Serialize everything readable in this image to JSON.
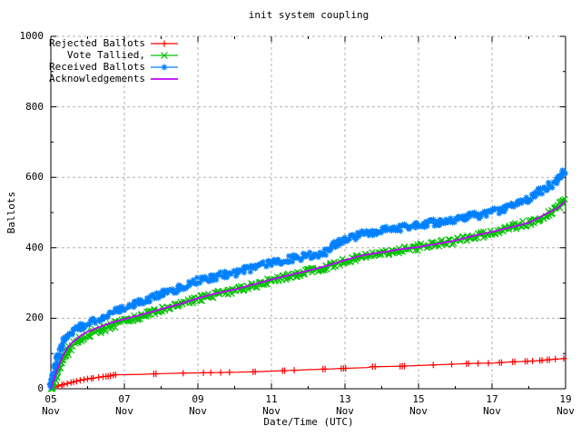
{
  "title": "init system coupling",
  "colors": {
    "background": "#ffffff",
    "border": "#000000",
    "grid": "#b0b0b0",
    "text": "#000000",
    "rejected": "#ff0000",
    "tallied": "#00c000",
    "received": "#0080ff",
    "acknowledgements": "#c000ff"
  },
  "chart_data": {
    "type": "line",
    "title": "init system coupling",
    "xlabel": "Date/Time (UTC)",
    "ylabel": "Ballots",
    "ylim": [
      0,
      1000
    ],
    "x_unit": "days since 05 Nov 00:00 UTC",
    "x_range_days": [
      0,
      14
    ],
    "grid": true,
    "legend_position": "top-left",
    "y_ticks": [
      {
        "value": 0,
        "label": "0"
      },
      {
        "value": 200,
        "label": "200"
      },
      {
        "value": 400,
        "label": "400"
      },
      {
        "value": 600,
        "label": "600"
      },
      {
        "value": 800,
        "label": "800"
      },
      {
        "value": 1000,
        "label": "1000"
      }
    ],
    "x_ticks": [
      {
        "day": 0,
        "line1": "05",
        "line2": "Nov"
      },
      {
        "day": 2,
        "line1": "07",
        "line2": "Nov"
      },
      {
        "day": 4,
        "line1": "09",
        "line2": "Nov"
      },
      {
        "day": 6,
        "line1": "11",
        "line2": "Nov"
      },
      {
        "day": 8,
        "line1": "13",
        "line2": "Nov"
      },
      {
        "day": 10,
        "line1": "15",
        "line2": "Nov"
      },
      {
        "day": 12,
        "line1": "17",
        "line2": "Nov"
      },
      {
        "day": 14,
        "line1": "19",
        "line2": "Nov"
      }
    ],
    "series": [
      {
        "name": "Rejected Ballots",
        "color": "#ff0000",
        "marker": "plus",
        "dense": false,
        "points": [
          [
            0,
            2
          ],
          [
            0.15,
            6
          ],
          [
            0.3,
            11
          ],
          [
            0.45,
            15
          ],
          [
            0.6,
            19
          ],
          [
            0.8,
            24
          ],
          [
            1,
            28
          ],
          [
            1.2,
            31
          ],
          [
            1.4,
            34
          ],
          [
            1.6,
            36
          ],
          [
            1.75,
            40
          ],
          [
            2,
            40
          ],
          [
            2.5,
            41
          ],
          [
            3,
            43
          ],
          [
            3.5,
            44
          ],
          [
            4,
            45
          ],
          [
            4.5,
            46
          ],
          [
            5,
            47
          ],
          [
            5.5,
            48
          ],
          [
            6,
            50
          ],
          [
            6.5,
            52
          ],
          [
            7,
            54
          ],
          [
            7.5,
            56
          ],
          [
            8,
            58
          ],
          [
            8.6,
            60
          ],
          [
            8.75,
            63
          ],
          [
            9,
            63
          ],
          [
            9.5,
            64
          ],
          [
            10,
            66
          ],
          [
            10.5,
            68
          ],
          [
            11,
            70
          ],
          [
            11.5,
            72
          ],
          [
            12,
            73
          ],
          [
            12.5,
            76
          ],
          [
            13,
            78
          ],
          [
            13.3,
            80
          ],
          [
            13.6,
            83
          ],
          [
            14,
            86
          ]
        ],
        "marker_days": [
          0.1,
          0.2,
          0.3,
          0.35,
          0.45,
          0.55,
          0.62,
          0.7,
          0.8,
          0.9,
          1.0,
          1.1,
          1.15,
          1.3,
          1.42,
          1.5,
          1.56,
          1.62,
          1.7,
          1.76,
          2.8,
          2.86,
          3.6,
          4.15,
          4.35,
          4.62,
          4.86,
          5.5,
          5.56,
          6.3,
          6.36,
          6.62,
          7.4,
          7.46,
          7.9,
          7.96,
          8.02,
          8.75,
          8.82,
          9.5,
          9.56,
          9.62,
          10.4,
          10.9,
          11.3,
          11.36,
          11.62,
          11.9,
          12.2,
          12.26,
          12.56,
          12.62,
          12.9,
          12.96,
          13.1,
          13.3,
          13.36,
          13.5,
          13.56,
          13.72,
          13.95
        ]
      },
      {
        "name": "Vote Tallied,",
        "color": "#00c000",
        "marker": "cross",
        "dense": true,
        "points": [
          [
            0,
            0
          ],
          [
            0.08,
            20
          ],
          [
            0.15,
            40
          ],
          [
            0.25,
            65
          ],
          [
            0.35,
            88
          ],
          [
            0.45,
            105
          ],
          [
            0.55,
            118
          ],
          [
            0.7,
            132
          ],
          [
            0.85,
            143
          ],
          [
            1,
            152
          ],
          [
            1.2,
            160
          ],
          [
            1.4,
            168
          ],
          [
            1.6,
            176
          ],
          [
            1.8,
            184
          ],
          [
            2,
            190
          ],
          [
            2.3,
            200
          ],
          [
            2.6,
            210
          ],
          [
            3,
            222
          ],
          [
            3.3,
            232
          ],
          [
            3.6,
            242
          ],
          [
            4,
            255
          ],
          [
            4.3,
            263
          ],
          [
            4.6,
            270
          ],
          [
            5,
            280
          ],
          [
            5.3,
            288
          ],
          [
            5.6,
            295
          ],
          [
            6,
            308
          ],
          [
            6.3,
            315
          ],
          [
            6.6,
            323
          ],
          [
            7,
            333
          ],
          [
            7.3,
            340
          ],
          [
            7.6,
            348
          ],
          [
            8,
            363
          ],
          [
            8.3,
            371
          ],
          [
            8.6,
            378
          ],
          [
            9,
            385
          ],
          [
            9.3,
            390
          ],
          [
            9.6,
            395
          ],
          [
            10,
            401
          ],
          [
            10.3,
            407
          ],
          [
            10.6,
            413
          ],
          [
            11,
            420
          ],
          [
            11.3,
            427
          ],
          [
            11.6,
            433
          ],
          [
            12,
            444
          ],
          [
            12.3,
            452
          ],
          [
            12.6,
            460
          ],
          [
            13,
            472
          ],
          [
            13.3,
            485
          ],
          [
            13.6,
            500
          ],
          [
            13.8,
            514
          ],
          [
            14,
            538
          ]
        ]
      },
      {
        "name": "Received Ballots",
        "color": "#0080ff",
        "marker": "star",
        "dense": true,
        "points": [
          [
            0,
            3
          ],
          [
            0.06,
            35
          ],
          [
            0.12,
            62
          ],
          [
            0.2,
            95
          ],
          [
            0.3,
            122
          ],
          [
            0.4,
            140
          ],
          [
            0.5,
            152
          ],
          [
            0.65,
            165
          ],
          [
            0.8,
            175
          ],
          [
            1,
            185
          ],
          [
            1.2,
            192
          ],
          [
            1.4,
            200
          ],
          [
            1.6,
            212
          ],
          [
            1.8,
            222
          ],
          [
            2,
            228
          ],
          [
            2.3,
            240
          ],
          [
            2.6,
            252
          ],
          [
            3,
            268
          ],
          [
            3.3,
            278
          ],
          [
            3.6,
            290
          ],
          [
            4,
            305
          ],
          [
            4.3,
            313
          ],
          [
            4.6,
            320
          ],
          [
            5,
            330
          ],
          [
            5.3,
            338
          ],
          [
            5.6,
            345
          ],
          [
            6,
            357
          ],
          [
            6.3,
            363
          ],
          [
            6.6,
            369
          ],
          [
            7,
            377
          ],
          [
            7.3,
            383
          ],
          [
            7.55,
            390
          ],
          [
            7.7,
            406
          ],
          [
            7.85,
            418
          ],
          [
            8,
            424
          ],
          [
            8.3,
            435
          ],
          [
            8.6,
            443
          ],
          [
            9,
            450
          ],
          [
            9.3,
            455
          ],
          [
            9.6,
            458
          ],
          [
            10,
            463
          ],
          [
            10.3,
            469
          ],
          [
            10.6,
            474
          ],
          [
            11,
            481
          ],
          [
            11.3,
            487
          ],
          [
            11.6,
            492
          ],
          [
            12,
            503
          ],
          [
            12.3,
            510
          ],
          [
            12.6,
            520
          ],
          [
            13,
            540
          ],
          [
            13.3,
            558
          ],
          [
            13.6,
            578
          ],
          [
            13.8,
            595
          ],
          [
            14,
            620
          ]
        ]
      },
      {
        "name": "Acknowledgements",
        "color": "#c000ff",
        "marker": "none",
        "dense": false,
        "points": [
          [
            0,
            0
          ],
          [
            0.08,
            26
          ],
          [
            0.15,
            48
          ],
          [
            0.25,
            75
          ],
          [
            0.35,
            98
          ],
          [
            0.45,
            115
          ],
          [
            0.55,
            128
          ],
          [
            0.7,
            142
          ],
          [
            0.85,
            153
          ],
          [
            1,
            162
          ],
          [
            1.2,
            170
          ],
          [
            1.4,
            178
          ],
          [
            1.6,
            186
          ],
          [
            1.8,
            192
          ],
          [
            2,
            198
          ],
          [
            2.3,
            206
          ],
          [
            2.6,
            214
          ],
          [
            3,
            226
          ],
          [
            3.5,
            240
          ],
          [
            4,
            257
          ],
          [
            4.5,
            271
          ],
          [
            5,
            282
          ],
          [
            5.5,
            296
          ],
          [
            6,
            310
          ],
          [
            6.5,
            323
          ],
          [
            7,
            335
          ],
          [
            7.5,
            349
          ],
          [
            8,
            365
          ],
          [
            8.5,
            379
          ],
          [
            9,
            387
          ],
          [
            9.5,
            396
          ],
          [
            10,
            402
          ],
          [
            10.5,
            411
          ],
          [
            11,
            421
          ],
          [
            11.5,
            434
          ],
          [
            12,
            445
          ],
          [
            12.5,
            458
          ],
          [
            13,
            471
          ],
          [
            13.5,
            498
          ],
          [
            13.8,
            514
          ],
          [
            14,
            533
          ]
        ]
      }
    ]
  }
}
